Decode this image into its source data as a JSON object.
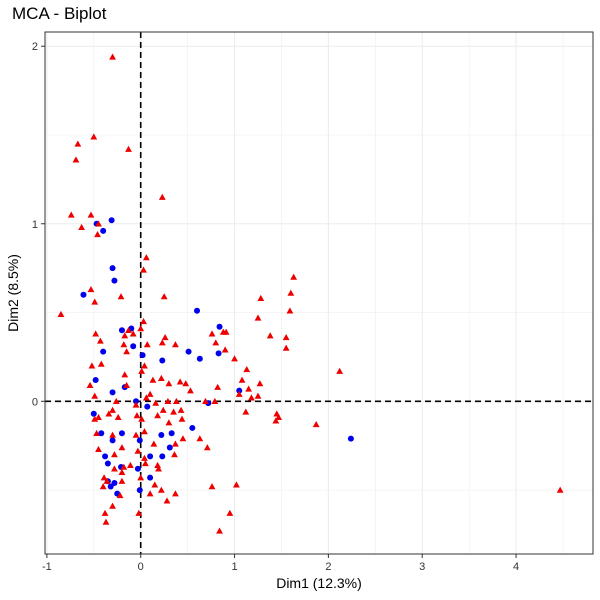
{
  "chart_data": {
    "type": "scatter",
    "title": "MCA - Biplot",
    "xlabel": "Dim1 (12.3%)",
    "ylabel": "Dim2 (8.5%)",
    "xlim": [
      -1.02,
      4.82
    ],
    "ylim": [
      -0.86,
      2.08
    ],
    "xticks": [
      "-1",
      "0",
      "1",
      "2",
      "3",
      "4"
    ],
    "yticks": [
      "0",
      "1",
      "2"
    ],
    "reference_lines": {
      "x": 0,
      "y": 0,
      "style": "dashed"
    },
    "grid": true,
    "series": [
      {
        "marker": "circle",
        "color": "#0000ee",
        "points": [
          [
            -0.47,
            1.0
          ],
          [
            -0.31,
            1.02
          ],
          [
            -0.4,
            0.96
          ],
          [
            -0.3,
            0.75
          ],
          [
            -0.28,
            0.68
          ],
          [
            -0.61,
            0.6
          ],
          [
            -0.2,
            0.4
          ],
          [
            -0.1,
            0.41
          ],
          [
            -0.08,
            0.31
          ],
          [
            -0.4,
            0.28
          ],
          [
            0.02,
            0.26
          ],
          [
            0.23,
            0.23
          ],
          [
            0.51,
            0.28
          ],
          [
            0.63,
            0.24
          ],
          [
            0.6,
            0.51
          ],
          [
            0.84,
            0.42
          ],
          [
            0.83,
            0.27
          ],
          [
            0.72,
            -0.01
          ],
          [
            1.05,
            0.06
          ],
          [
            -0.48,
            0.12
          ],
          [
            -0.3,
            0.05
          ],
          [
            -0.17,
            0.08
          ],
          [
            -0.05,
            0.0
          ],
          [
            0.07,
            -0.03
          ],
          [
            -0.5,
            -0.07
          ],
          [
            -0.42,
            -0.18
          ],
          [
            -0.2,
            -0.18
          ],
          [
            -0.3,
            -0.22
          ],
          [
            0.22,
            -0.19
          ],
          [
            0.33,
            -0.18
          ],
          [
            0.55,
            -0.15
          ],
          [
            -0.01,
            -0.22
          ],
          [
            0.31,
            -0.26
          ],
          [
            -0.03,
            -0.38
          ],
          [
            0.1,
            -0.31
          ],
          [
            0.23,
            -0.31
          ],
          [
            -0.38,
            -0.31
          ],
          [
            -0.35,
            -0.35
          ],
          [
            -0.21,
            -0.37
          ],
          [
            -0.35,
            -0.45
          ],
          [
            -0.32,
            -0.48
          ],
          [
            -0.28,
            -0.46
          ],
          [
            -0.25,
            -0.52
          ],
          [
            0.1,
            -0.43
          ],
          [
            -0.01,
            -0.5
          ],
          [
            2.24,
            -0.21
          ]
        ]
      },
      {
        "marker": "triangle",
        "color": "#ee0000",
        "points": [
          [
            -0.3,
            1.94
          ],
          [
            -0.5,
            1.49
          ],
          [
            -0.67,
            1.45
          ],
          [
            -0.69,
            1.36
          ],
          [
            -0.13,
            1.42
          ],
          [
            0.23,
            1.15
          ],
          [
            -0.74,
            1.05
          ],
          [
            -0.53,
            1.05
          ],
          [
            -0.63,
            0.98
          ],
          [
            -0.45,
            1.0
          ],
          [
            -0.46,
            0.94
          ],
          [
            0.06,
            0.81
          ],
          [
            0.03,
            0.74
          ],
          [
            -0.21,
            0.59
          ],
          [
            -0.53,
            0.63
          ],
          [
            -0.49,
            0.56
          ],
          [
            -0.85,
            0.49
          ],
          [
            0.25,
            0.59
          ],
          [
            -0.17,
            0.37
          ],
          [
            -0.13,
            0.4
          ],
          [
            0.03,
            0.45
          ],
          [
            0.0,
            0.41
          ],
          [
            -0.08,
            0.38
          ],
          [
            -0.18,
            0.32
          ],
          [
            -0.15,
            0.28
          ],
          [
            -0.48,
            0.38
          ],
          [
            -0.43,
            0.34
          ],
          [
            0.07,
            0.32
          ],
          [
            0.26,
            0.36
          ],
          [
            0.23,
            0.33
          ],
          [
            0.37,
            0.32
          ],
          [
            0.76,
            0.38
          ],
          [
            0.88,
            0.39
          ],
          [
            0.91,
            0.39
          ],
          [
            0.8,
            0.33
          ],
          [
            0.9,
            0.29
          ],
          [
            1.0,
            0.24
          ],
          [
            1.28,
            0.58
          ],
          [
            1.63,
            0.7
          ],
          [
            1.6,
            0.61
          ],
          [
            1.55,
            0.36
          ],
          [
            1.59,
            0.51
          ],
          [
            1.25,
            0.47
          ],
          [
            1.38,
            0.37
          ],
          [
            1.55,
            0.3
          ],
          [
            -0.52,
            0.2
          ],
          [
            -0.42,
            0.21
          ],
          [
            0.04,
            0.2
          ],
          [
            0.01,
            0.17
          ],
          [
            0.13,
            0.12
          ],
          [
            0.22,
            0.13
          ],
          [
            0.3,
            0.1
          ],
          [
            0.42,
            0.11
          ],
          [
            0.48,
            0.1
          ],
          [
            0.53,
            0.06
          ],
          [
            0.1,
            0.04
          ],
          [
            0.06,
            0.02
          ],
          [
            -0.54,
            0.09
          ],
          [
            -0.49,
            0.03
          ],
          [
            -0.17,
            0.15
          ],
          [
            -0.15,
            0.09
          ],
          [
            -0.26,
            0.0
          ],
          [
            -0.3,
            -0.05
          ],
          [
            -0.05,
            -0.02
          ],
          [
            0.16,
            -0.01
          ],
          [
            0.29,
            0.0
          ],
          [
            0.38,
            0.0
          ],
          [
            0.43,
            -0.05
          ],
          [
            0.69,
            0.0
          ],
          [
            0.79,
            0.0
          ],
          [
            0.82,
            0.08
          ],
          [
            1.05,
            0.04
          ],
          [
            1.08,
            0.12
          ],
          [
            1.15,
            0.07
          ],
          [
            1.18,
            0.02
          ],
          [
            1.12,
            -0.06
          ],
          [
            1.25,
            0.03
          ],
          [
            1.27,
            0.1
          ],
          [
            1.13,
            0.18
          ],
          [
            2.12,
            0.17
          ],
          [
            1.45,
            -0.07
          ],
          [
            1.47,
            -0.09
          ],
          [
            1.87,
            -0.13
          ],
          [
            1.44,
            -0.11
          ],
          [
            -0.49,
            -0.1
          ],
          [
            -0.45,
            -0.09
          ],
          [
            -0.24,
            -0.09
          ],
          [
            -0.34,
            -0.07
          ],
          [
            -0.04,
            -0.08
          ],
          [
            0.01,
            -0.1
          ],
          [
            0.18,
            -0.08
          ],
          [
            0.24,
            -0.05
          ],
          [
            0.35,
            -0.06
          ],
          [
            0.3,
            -0.12
          ],
          [
            0.44,
            -0.1
          ],
          [
            -0.3,
            -0.19
          ],
          [
            -0.05,
            -0.19
          ],
          [
            0.04,
            -0.17
          ],
          [
            0.14,
            -0.24
          ],
          [
            -0.47,
            -0.18
          ],
          [
            -0.45,
            -0.27
          ],
          [
            -0.2,
            -0.26
          ],
          [
            -0.28,
            -0.3
          ],
          [
            -0.03,
            -0.28
          ],
          [
            -0.11,
            -0.36
          ],
          [
            -0.18,
            -0.37
          ],
          [
            -0.28,
            -0.38
          ],
          [
            -0.2,
            -0.4
          ],
          [
            0.04,
            -0.32
          ],
          [
            0.05,
            -0.35
          ],
          [
            0.18,
            -0.36
          ],
          [
            0.19,
            -0.38
          ],
          [
            0.36,
            -0.3
          ],
          [
            0.37,
            -0.24
          ],
          [
            0.45,
            -0.21
          ],
          [
            0.63,
            -0.21
          ],
          [
            0.71,
            -0.26
          ],
          [
            -0.39,
            -0.43
          ],
          [
            -0.4,
            -0.48
          ],
          [
            -0.36,
            -0.45
          ],
          [
            -0.2,
            -0.45
          ],
          [
            -0.22,
            -0.53
          ],
          [
            -0.3,
            -0.59
          ],
          [
            -0.38,
            -0.63
          ],
          [
            -0.37,
            -0.68
          ],
          [
            0.0,
            -0.43
          ],
          [
            0.15,
            -0.47
          ],
          [
            0.1,
            -0.52
          ],
          [
            0.22,
            -0.5
          ],
          [
            0.37,
            -0.52
          ],
          [
            0.28,
            -0.56
          ],
          [
            -0.02,
            -0.63
          ],
          [
            0.76,
            -0.48
          ],
          [
            1.02,
            -0.47
          ],
          [
            0.95,
            -0.63
          ],
          [
            0.84,
            -0.73
          ],
          [
            4.47,
            -0.5
          ]
        ]
      }
    ]
  }
}
